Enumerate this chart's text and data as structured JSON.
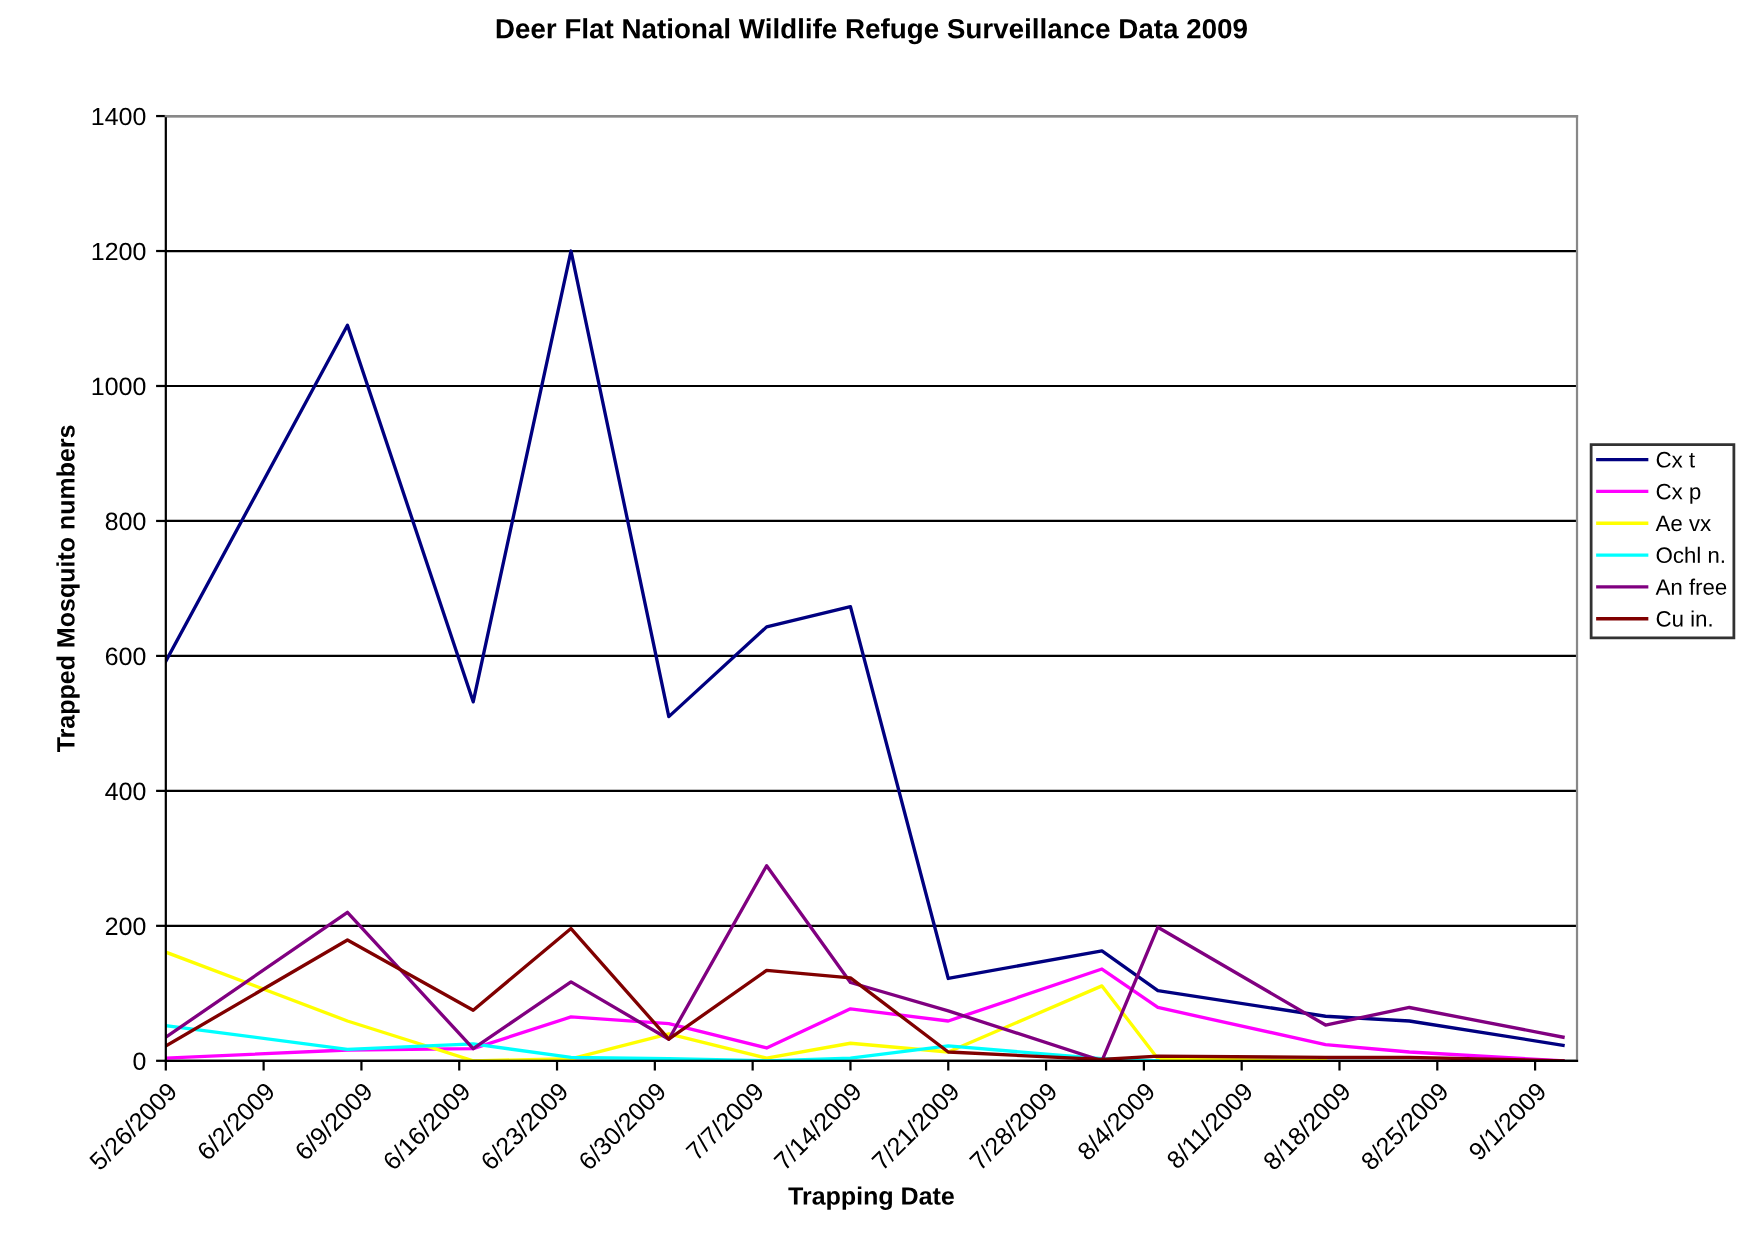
{
  "chart_data": {
    "type": "line",
    "title": "Deer Flat National Wildlife Refuge Surveillance Data 2009",
    "xlabel": "Trapping Date",
    "ylabel": "Trapped Mosquito numbers",
    "x": [
      "2009-05-26",
      "2009-06-08",
      "2009-06-17",
      "2009-06-24",
      "2009-07-01",
      "2009-07-08",
      "2009-07-14",
      "2009-07-21",
      "2009-08-01",
      "2009-08-05",
      "2009-08-17",
      "2009-08-23",
      "2009-09-03"
    ],
    "series": [
      {
        "name": "Cx t",
        "color": "#000080",
        "values": [
          592,
          1090,
          532,
          1200,
          510,
          643,
          673,
          122,
          163,
          104,
          66,
          59,
          23
        ]
      },
      {
        "name": "Cx p",
        "color": "#ff00ff",
        "values": [
          4,
          16,
          18,
          65,
          55,
          19,
          77,
          59,
          136,
          79,
          24,
          13,
          0
        ]
      },
      {
        "name": "Ae vx",
        "color": "#ffff00",
        "values": [
          161,
          59,
          0,
          3,
          40,
          4,
          26,
          13,
          111,
          3,
          0,
          null,
          null
        ]
      },
      {
        "name": "Ochl n.",
        "color": "#00ffff",
        "values": [
          52,
          17,
          25,
          5,
          3,
          0,
          4,
          22,
          3,
          0,
          null,
          null,
          null
        ]
      },
      {
        "name": "An free",
        "color": "#800080",
        "values": [
          35,
          220,
          18,
          117,
          32,
          289,
          116,
          74,
          0,
          198,
          53,
          79,
          35
        ]
      },
      {
        "name": "Cu in.",
        "color": "#800000",
        "values": [
          22,
          179,
          75,
          196,
          32,
          134,
          123,
          13,
          2,
          7,
          5,
          5,
          0
        ]
      }
    ],
    "xlim": [
      "2009-05-26",
      "2009-09-04"
    ],
    "xticks": [
      {
        "value": "2009-05-26",
        "label": "5/26/2009"
      },
      {
        "value": "2009-06-02",
        "label": "6/2/2009"
      },
      {
        "value": "2009-06-09",
        "label": "6/9/2009"
      },
      {
        "value": "2009-06-16",
        "label": "6/16/2009"
      },
      {
        "value": "2009-06-23",
        "label": "6/23/2009"
      },
      {
        "value": "2009-06-30",
        "label": "6/30/2009"
      },
      {
        "value": "2009-07-07",
        "label": "7/7/2009"
      },
      {
        "value": "2009-07-14",
        "label": "7/14/2009"
      },
      {
        "value": "2009-07-21",
        "label": "7/21/2009"
      },
      {
        "value": "2009-07-28",
        "label": "7/28/2009"
      },
      {
        "value": "2009-08-04",
        "label": "8/4/2009"
      },
      {
        "value": "2009-08-11",
        "label": "8/11/2009"
      },
      {
        "value": "2009-08-18",
        "label": "8/18/2009"
      },
      {
        "value": "2009-08-25",
        "label": "8/25/2009"
      },
      {
        "value": "2009-09-01",
        "label": "9/1/2009"
      }
    ],
    "ylim": [
      0,
      1400
    ],
    "yticks": [
      0,
      200,
      400,
      600,
      800,
      1000,
      1200,
      1400
    ],
    "grid": "y",
    "legend": "right",
    "marker": "none",
    "line_style": "solid"
  }
}
